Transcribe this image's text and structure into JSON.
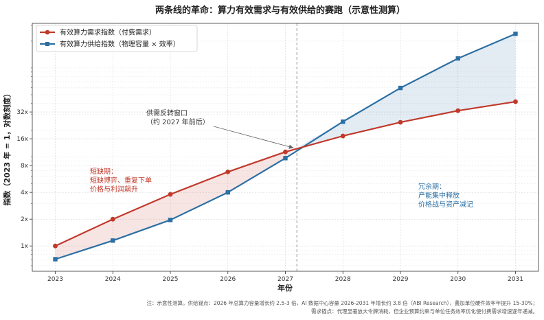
{
  "chart_data": {
    "type": "line",
    "title": "两条线的革命：算力有效需求与有效供给的赛跑（示意性测算）",
    "xlabel": "年份",
    "ylabel": "指数（2023 年 = 1，对数刻度）",
    "x": [
      2023,
      2024,
      2025,
      2026,
      2027,
      2028,
      2029,
      2030,
      2031
    ],
    "x_tick_labels": [
      "2023",
      "2024",
      "2025",
      "2026",
      "2027",
      "2028",
      "2029",
      "2030",
      "2031"
    ],
    "xlim": [
      2022.6,
      2031.4
    ],
    "y_scale": "log",
    "y_ticks": [
      1,
      2,
      4,
      8,
      16,
      32
    ],
    "y_tick_labels": [
      "1x",
      "2x",
      "4x",
      "8x",
      "16x",
      "32x"
    ],
    "ylim": [
      0.52,
      317
    ],
    "grid": true,
    "legend_position": "top-left",
    "series": [
      {
        "name": "有效算力需求指数（付费需求）",
        "color": "#c0392b",
        "marker": "circle",
        "values": [
          1.0,
          2.0,
          3.8,
          6.8,
          11.4,
          17.2,
          24.5,
          33.1,
          41.8
        ]
      },
      {
        "name": "有效算力供给指数（物理容量 × 效率）",
        "color": "#2c6fa3",
        "marker": "square",
        "values": [
          0.71,
          1.15,
          1.96,
          4.0,
          9.7,
          24.9,
          59.6,
          128,
          242
        ]
      }
    ],
    "reference_line": {
      "x": 2027.2,
      "style": "dashed",
      "color": "#a6a6a6"
    },
    "regions": {
      "shortage": {
        "color": "#c0392b",
        "lines": [
          "短缺期：",
          "短缺博弈、重复下单",
          "价格与利润飙升"
        ]
      },
      "surplus": {
        "color": "#2c6fa3",
        "lines": [
          "冗余期：",
          "产能集中释放",
          "价格战与资产减记"
        ]
      }
    },
    "annotation": {
      "lines": [
        "供需反转窗口",
        "（约 2027 年前后）"
      ],
      "arrow_color": "#666666"
    }
  },
  "footnote": [
    "注：示意性测算。供给锚点：2026 年总算力容量增长约 2.5-3 倍，AI 数据中心容量 2026-2031 年增长约 3.8 倍（ABI Research），叠加单位硬件效率年提升 15-30%；",
    "需求锚点：代理显著放大令牌消耗，但企业预算约束与单位任务效率优化使付费需求增速逐年递减。"
  ]
}
